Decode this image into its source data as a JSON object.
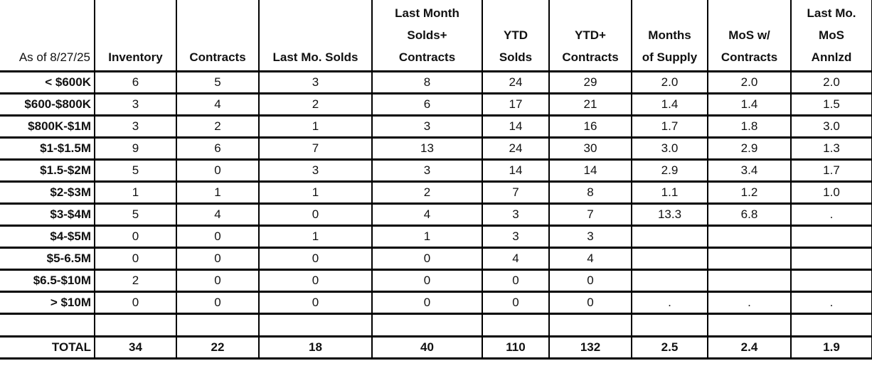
{
  "colors": {
    "background": "#ffffff",
    "grid_border": "#000000",
    "text": "#111111"
  },
  "chart_data": {
    "type": "table",
    "corner_label": "As of 8/27/25",
    "columns": [
      "Inventory",
      "Contracts",
      "Last Mo. Solds",
      "Last Month Solds+ Contracts",
      "YTD Solds",
      "YTD+ Contracts",
      "Months of Supply",
      "MoS w/ Contracts",
      "Last Mo. MoS Annlzd"
    ],
    "column_headers_display": [
      "Inventory",
      "Contracts",
      "Last Mo. Solds",
      "Last Month\nSolds+\nContracts",
      "YTD\nSolds",
      "YTD+\nContracts",
      "Months\nof Supply",
      "MoS w/\nContracts",
      "Last Mo.\nMoS\nAnnlzd"
    ],
    "rows": [
      {
        "kind": "data",
        "label": "< $600K",
        "cells": [
          "6",
          "5",
          "3",
          "8",
          "24",
          "29",
          "2.0",
          "2.0",
          "2.0"
        ]
      },
      {
        "kind": "data",
        "label": "$600-$800K",
        "cells": [
          "3",
          "4",
          "2",
          "6",
          "17",
          "21",
          "1.4",
          "1.4",
          "1.5"
        ]
      },
      {
        "kind": "data",
        "label": "$800K-$1M",
        "cells": [
          "3",
          "2",
          "1",
          "3",
          "14",
          "16",
          "1.7",
          "1.8",
          "3.0"
        ]
      },
      {
        "kind": "data",
        "label": "$1-$1.5M",
        "cells": [
          "9",
          "6",
          "7",
          "13",
          "24",
          "30",
          "3.0",
          "2.9",
          "1.3"
        ]
      },
      {
        "kind": "data",
        "label": "$1.5-$2M",
        "cells": [
          "5",
          "0",
          "3",
          "3",
          "14",
          "14",
          "2.9",
          "3.4",
          "1.7"
        ]
      },
      {
        "kind": "data",
        "label": "$2-$3M",
        "cells": [
          "1",
          "1",
          "1",
          "2",
          "7",
          "8",
          "1.1",
          "1.2",
          "1.0"
        ]
      },
      {
        "kind": "data",
        "label": "$3-$4M",
        "cells": [
          "5",
          "4",
          "0",
          "4",
          "3",
          "7",
          "13.3",
          "6.8",
          "."
        ]
      },
      {
        "kind": "data",
        "label": "$4-$5M",
        "cells": [
          "0",
          "0",
          "1",
          "1",
          "3",
          "3",
          "",
          "",
          ""
        ]
      },
      {
        "kind": "data",
        "label": "$5-6.5M",
        "cells": [
          "0",
          "0",
          "0",
          "0",
          "4",
          "4",
          "",
          "",
          ""
        ]
      },
      {
        "kind": "data",
        "label": "$6.5-$10M",
        "cells": [
          "2",
          "0",
          "0",
          "0",
          "0",
          "0",
          "",
          "",
          ""
        ]
      },
      {
        "kind": "data",
        "label": "> $10M",
        "cells": [
          "0",
          "0",
          "0",
          "0",
          "0",
          "0",
          ".",
          ".",
          "."
        ]
      },
      {
        "kind": "spacer",
        "label": "",
        "cells": [
          "",
          "",
          "",
          "",
          "",
          "",
          "",
          "",
          ""
        ]
      },
      {
        "kind": "total",
        "label": "TOTAL",
        "cells": [
          "34",
          "22",
          "18",
          "40",
          "110",
          "132",
          "2.5",
          "2.4",
          "1.9"
        ]
      }
    ]
  }
}
